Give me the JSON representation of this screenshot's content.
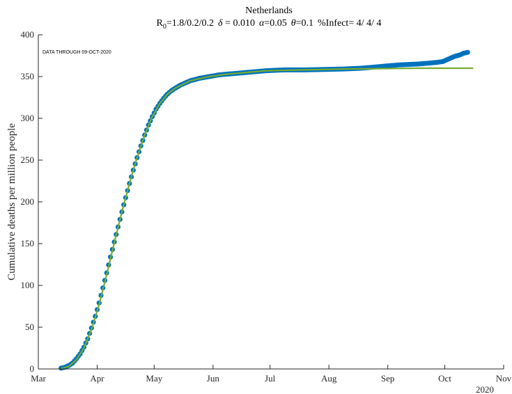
{
  "chart_data": {
    "type": "line",
    "title": "Netherlands",
    "subtitle": {
      "r0_base": "R",
      "r0_sub": "0",
      "r0_value": "=1.8/0.2/0.2",
      "delta_symbol": "δ",
      "delta_value": " = 0.010",
      "alpha_symbol": "α",
      "alpha_value": "=0.05",
      "theta_symbol": "θ",
      "theta_value": "=0.1",
      "infect": "%Infect= 4/ 4/ 4"
    },
    "annotation": "DATA THROUGH 09-OCT-2020",
    "xlabel": "",
    "xlabel_year": "2020",
    "ylabel": "Cumulative deaths per million people",
    "x_ticks": [
      {
        "label": "Mar",
        "day": 0
      },
      {
        "label": "Apr",
        "day": 31
      },
      {
        "label": "May",
        "day": 61
      },
      {
        "label": "Jun",
        "day": 92
      },
      {
        "label": "Jul",
        "day": 122
      },
      {
        "label": "Aug",
        "day": 153
      },
      {
        "label": "Sep",
        "day": 184
      },
      {
        "label": "Oct",
        "day": 214
      },
      {
        "label": "Nov",
        "day": 245
      }
    ],
    "ylim": [
      0,
      400
    ],
    "y_ticks": [
      0,
      50,
      100,
      150,
      200,
      250,
      300,
      350,
      400
    ],
    "xlim_days": [
      0,
      245
    ],
    "series": [
      {
        "kind": "observed",
        "color": "#0072bd",
        "points": [
          [
            12,
            1
          ],
          [
            14,
            2
          ],
          [
            16,
            4
          ],
          [
            18,
            7
          ],
          [
            20,
            12
          ],
          [
            22,
            18
          ],
          [
            24,
            26
          ],
          [
            26,
            36
          ],
          [
            28,
            49
          ],
          [
            30,
            63
          ],
          [
            32,
            79
          ],
          [
            34,
            97
          ],
          [
            36,
            115
          ],
          [
            38,
            134
          ],
          [
            40,
            152
          ],
          [
            42,
            170
          ],
          [
            44,
            188
          ],
          [
            46,
            205
          ],
          [
            48,
            222
          ],
          [
            50,
            238
          ],
          [
            52,
            253
          ],
          [
            54,
            267
          ],
          [
            56,
            280
          ],
          [
            58,
            292
          ],
          [
            60,
            302
          ],
          [
            62,
            311
          ],
          [
            64,
            318
          ],
          [
            66,
            324
          ],
          [
            68,
            329
          ],
          [
            70,
            333
          ],
          [
            72,
            336
          ],
          [
            75,
            340
          ],
          [
            80,
            345
          ],
          [
            85,
            348
          ],
          [
            90,
            350
          ],
          [
            95,
            352
          ],
          [
            100,
            353
          ],
          [
            110,
            355
          ],
          [
            120,
            357
          ],
          [
            130,
            358
          ],
          [
            140,
            358
          ],
          [
            150,
            358.5
          ],
          [
            160,
            359
          ],
          [
            170,
            360
          ],
          [
            180,
            362
          ],
          [
            190,
            364
          ],
          [
            200,
            365
          ],
          [
            205,
            366
          ],
          [
            210,
            367
          ],
          [
            213,
            368
          ],
          [
            216,
            371
          ],
          [
            219,
            374
          ],
          [
            222,
            376
          ],
          [
            224,
            378
          ],
          [
            226,
            379
          ]
        ]
      },
      {
        "kind": "model",
        "color": "#77ac30",
        "points": [
          [
            12,
            0.5
          ],
          [
            16,
            3
          ],
          [
            20,
            11
          ],
          [
            24,
            25
          ],
          [
            28,
            47
          ],
          [
            32,
            77
          ],
          [
            36,
            113
          ],
          [
            40,
            151
          ],
          [
            44,
            188
          ],
          [
            48,
            222
          ],
          [
            52,
            253
          ],
          [
            56,
            280
          ],
          [
            60,
            302
          ],
          [
            64,
            318
          ],
          [
            68,
            329
          ],
          [
            72,
            336
          ],
          [
            80,
            345
          ],
          [
            90,
            350
          ],
          [
            100,
            353
          ],
          [
            120,
            357
          ],
          [
            140,
            358
          ],
          [
            160,
            359
          ],
          [
            180,
            359.5
          ],
          [
            200,
            360
          ],
          [
            220,
            360
          ],
          [
            229,
            360
          ]
        ]
      }
    ]
  }
}
